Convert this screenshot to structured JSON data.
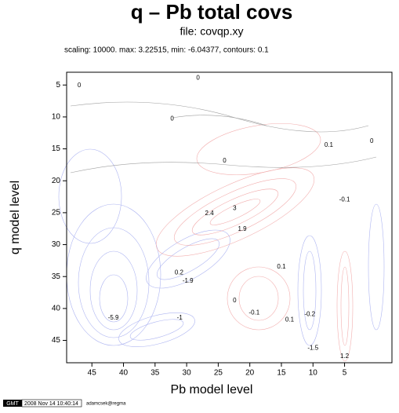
{
  "chart_data": {
    "type": "contour",
    "title": "q – Pb total covs",
    "subtitle": "file: covqp.xy",
    "info": "scaling: 10000.  max: 3.22515, min: -6.04377, contours: 0.1",
    "xlabel": "Pb model level",
    "ylabel": "q model level",
    "xlim": [
      49,
      -2.5
    ],
    "ylim": [
      3,
      48.5
    ],
    "xticks": [
      45,
      40,
      35,
      30,
      25,
      20,
      15,
      10,
      5
    ],
    "yticks": [
      5,
      10,
      15,
      20,
      25,
      30,
      35,
      40,
      45
    ],
    "contour_labels": [
      {
        "x": 28.2,
        "y": 3.9,
        "value": 0
      },
      {
        "x": 47,
        "y": 5.1,
        "value": 0
      },
      {
        "x": 32.3,
        "y": 10.3,
        "value": 0
      },
      {
        "x": 24,
        "y": 16.9,
        "value": 0
      },
      {
        "x": 22.4,
        "y": 24.3,
        "value": 3
      },
      {
        "x": 26.4,
        "y": 25.1,
        "value": 2.4
      },
      {
        "x": 21.2,
        "y": 27.6,
        "value": 1.9
      },
      {
        "x": 0.7,
        "y": 13.8,
        "value": 0
      },
      {
        "x": 7.5,
        "y": 14.4,
        "value": 0.1
      },
      {
        "x": 5,
        "y": 23,
        "value": -0.1
      },
      {
        "x": 15,
        "y": 33.5,
        "value": 0.1
      },
      {
        "x": 31.2,
        "y": 34.4,
        "value": 0.2
      },
      {
        "x": 29.8,
        "y": 35.7,
        "value": -1.9
      },
      {
        "x": 22.4,
        "y": 38.8,
        "value": 0
      },
      {
        "x": 19.3,
        "y": 40.7,
        "value": -0.1
      },
      {
        "x": 10.5,
        "y": 40.9,
        "value": -0.2
      },
      {
        "x": 41.6,
        "y": 41.5,
        "value": -5.9
      },
      {
        "x": 31.1,
        "y": 41.5,
        "value": -1
      },
      {
        "x": 13.7,
        "y": 41.8,
        "value": 0.1
      },
      {
        "x": 10,
        "y": 46.2,
        "value": -1.5
      },
      {
        "x": 5,
        "y": 47.5,
        "value": 1.2
      }
    ],
    "footer": {
      "logo": "GMT",
      "timestamp": "2008 Nov 14 10:40:14",
      "user": "adamcsek@regma"
    }
  }
}
